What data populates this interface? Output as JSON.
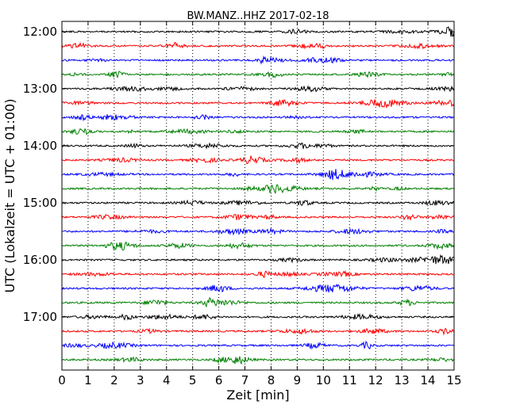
{
  "chart_data": {
    "type": "line",
    "title": "BW.MANZ..HHZ 2017-02-18",
    "xlabel": "Zeit  [min]",
    "ylabel": "UTC (Lokalzeit = UTC + 01:00)",
    "xlim": [
      0,
      15
    ],
    "x_ticks": [
      "0",
      "1",
      "2",
      "3",
      "4",
      "5",
      "6",
      "7",
      "8",
      "9",
      "10",
      "11",
      "12",
      "13",
      "14",
      "15"
    ],
    "y_ticks": [
      "12:00",
      "13:00",
      "14:00",
      "15:00",
      "16:00",
      "17:00"
    ],
    "trace_interval_minutes": 15,
    "first_trace": "12:00",
    "trace_count": 24,
    "trace_colors": [
      "#000000",
      "#ff0000",
      "#0000ff",
      "#008000"
    ],
    "vertical_grid": "dotted",
    "legend": "none"
  }
}
